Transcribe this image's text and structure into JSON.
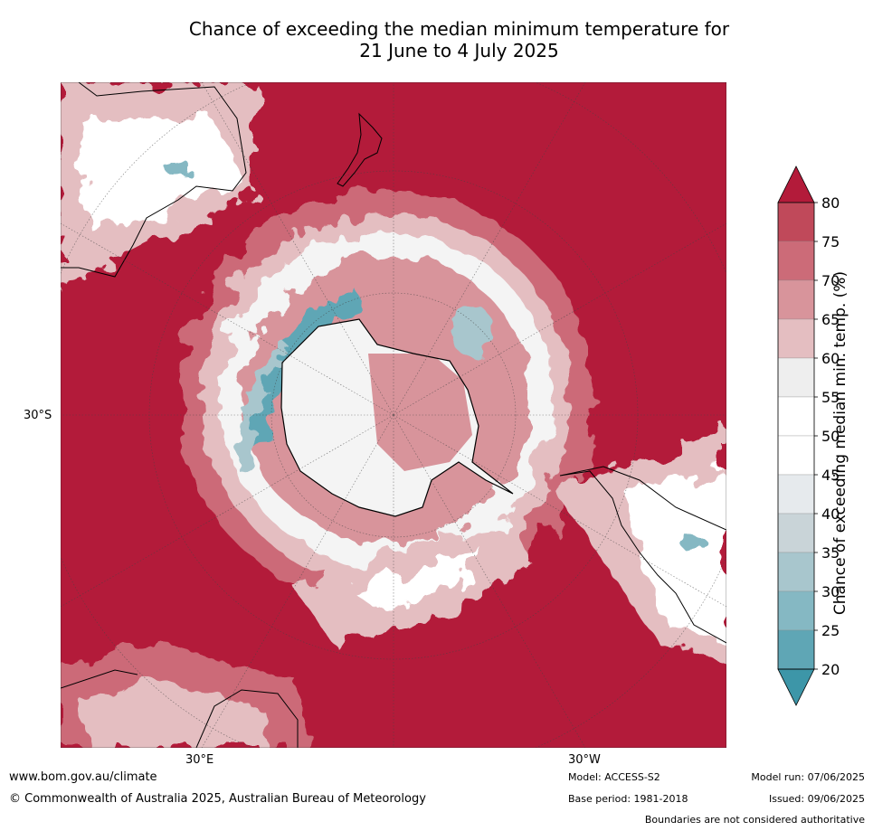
{
  "title": {
    "line1": "Chance of exceeding the median minimum temperature for",
    "line2": "21 June to 4 July 2025"
  },
  "map": {
    "projection": "south-polar-stereographic",
    "lat_label": "30°S",
    "lon_label_left": "30°E",
    "lon_label_right": "30°W",
    "dominant_color": "#b31b3a"
  },
  "colorbar": {
    "title": "Chance of exceeding median min. temp. (%)",
    "ticks": [
      "80",
      "75",
      "70",
      "65",
      "60",
      "55",
      "50",
      "45",
      "40",
      "35",
      "30",
      "25",
      "20"
    ],
    "colors": [
      "#b31b3a",
      "#c0495a",
      "#cc6b78",
      "#d8949b",
      "#e4bec1",
      "#eeeeee",
      "#ffffff",
      "#ffffff",
      "#e6eaed",
      "#c9d4d8",
      "#a8c6cd",
      "#85b8c3",
      "#5fa6b5",
      "#3d96a8"
    ]
  },
  "footer": {
    "website": "www.bom.gov.au/climate",
    "copyright": "© Commonwealth of Australia 2025, Australian Bureau of Meteorology",
    "model": "Model: ACCESS-S2",
    "base_period": "Base period: 1981-2018",
    "model_run": "Model run: 07/06/2025",
    "issued": "Issued: 09/06/2025",
    "disclaimer": "Boundaries are not considered authoritative"
  }
}
